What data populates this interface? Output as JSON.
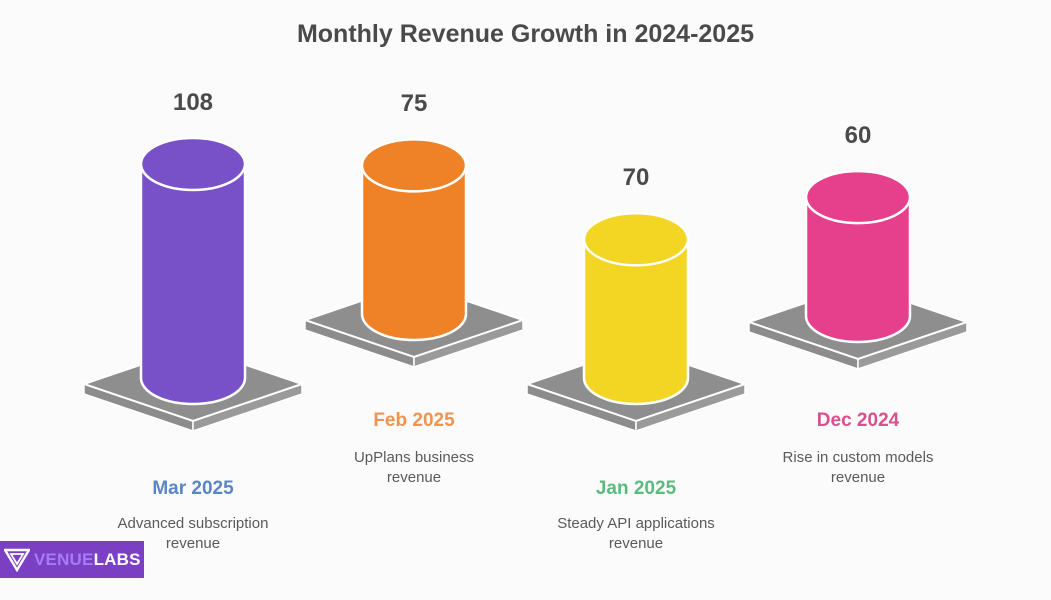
{
  "chart_data": {
    "type": "bar",
    "style": "3d-cylinder",
    "title": "Monthly Revenue Growth in 2024-2025",
    "categories": [
      "Mar 2025",
      "Feb 2025",
      "Jan 2025",
      "Dec 2024"
    ],
    "values": [
      108,
      75,
      70,
      60
    ],
    "value_labels": [
      "108",
      "75",
      "70",
      "60"
    ],
    "descriptions": [
      [
        "Advanced subscription",
        "revenue"
      ],
      [
        "UpPlans business",
        "revenue"
      ],
      [
        "Steady API applications",
        "revenue"
      ],
      [
        "Rise in custom models",
        "revenue"
      ]
    ],
    "colors": [
      "#7851c8",
      "#ef8126",
      "#f3d523",
      "#e63f8b"
    ],
    "category_label_colors": [
      "#5b86c5",
      "#ee9450",
      "#5cba7f",
      "#d9508f"
    ],
    "xlabel": "",
    "ylabel": "",
    "grid": false,
    "legend": "none"
  },
  "branding": {
    "logo_part1": "VENUE",
    "logo_part2": "LABS"
  }
}
